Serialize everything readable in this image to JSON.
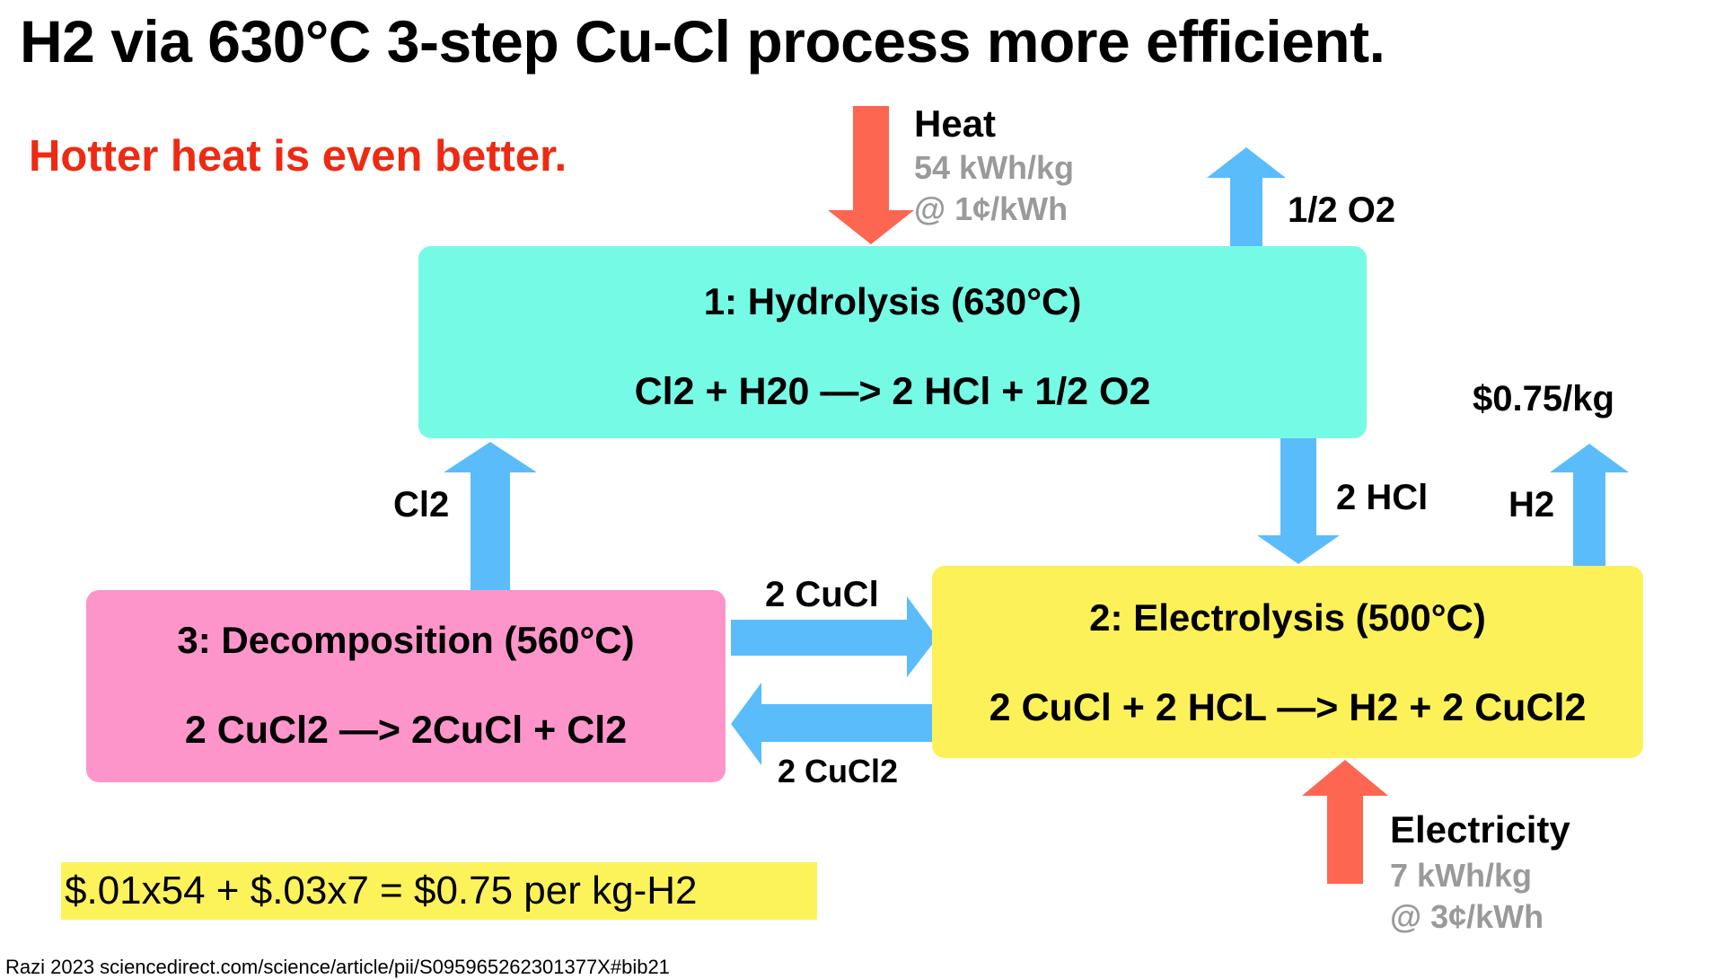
{
  "title": "H2 via 630°C 3-step Cu-Cl process more efficient.",
  "subtitle": "Hotter heat is even better.",
  "colors": {
    "hydrolysis_box": "#75fbe5",
    "electrolysis_box": "#fdf15a",
    "decomposition_box": "#fd95cb",
    "flow_arrow": "#5bbcfb",
    "energy_arrow": "#fd6650",
    "subtitle_red": "#ee2a13",
    "highlight_yellow": "#fcf35b"
  },
  "steps": {
    "hydrolysis": {
      "name": "1: Hydrolysis (630°C)",
      "equation": "Cl2 + H20 —> 2 HCl + 1/2 O2"
    },
    "electrolysis": {
      "name": "2: Electrolysis (500°C)",
      "equation": "2 CuCl + 2 HCL —> H2 + 2 CuCl2"
    },
    "decomposition": {
      "name": "3: Decomposition (560°C)",
      "equation": "2 CuCl2 —> 2CuCl + Cl2"
    }
  },
  "inputs": {
    "heat": {
      "label": "Heat",
      "amount": "54 kWh/kg",
      "price": "@ 1¢/kWh"
    },
    "electricity": {
      "label": "Electricity",
      "amount": "7 kWh/kg",
      "price": "@ 3¢/kWh"
    }
  },
  "flows": {
    "o2_out": "1/2 O2",
    "hcl": "2 HCl",
    "h2_out": "H2",
    "h2_price": "$0.75/kg",
    "cl2": "Cl2",
    "cucl": "2 CuCl",
    "cucl2": "2 CuCl2"
  },
  "cost_equation": "$.01x54 + $.03x7 = $0.75 per kg-H2",
  "source": "Razi 2023 sciencedirect.com/science/article/pii/S095965262301377X#bib21"
}
